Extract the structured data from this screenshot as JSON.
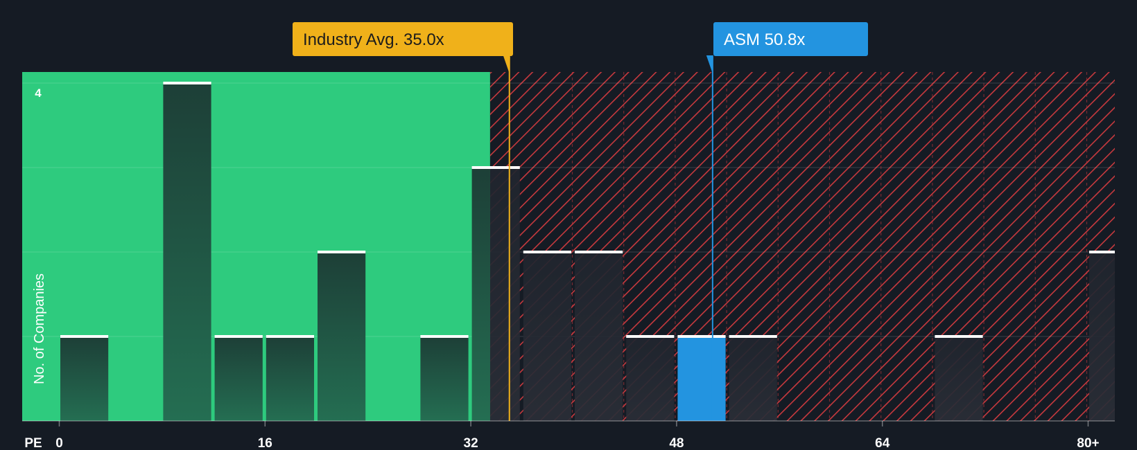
{
  "chart_data": {
    "type": "bar",
    "xlabel": "PE",
    "ylabel": "No. of Companies",
    "bin_width": 4,
    "xlim": [
      0,
      82
    ],
    "ylim": [
      0,
      4.14
    ],
    "x_ticks": [
      0,
      16,
      32,
      48,
      64,
      80
    ],
    "x_tick_labels": [
      "0",
      "16",
      "32",
      "48",
      "64",
      "80+"
    ],
    "y_ticks": [
      1,
      2,
      3,
      4
    ],
    "y_tick_labels": [
      "",
      "",
      "",
      "4"
    ],
    "bins": [
      0,
      8,
      12,
      16,
      20,
      28,
      32,
      36,
      40,
      44,
      48,
      52,
      68,
      80
    ],
    "values": [
      1,
      4,
      1,
      1,
      2,
      1,
      3,
      2,
      2,
      1,
      1,
      1,
      1,
      2
    ],
    "highlight_bin": 48,
    "fair_zone_end": 33.5,
    "markers": {
      "industry": {
        "label": "Industry Avg. 35.0x",
        "value": 35.0,
        "color": "#f0b11a"
      },
      "company": {
        "label": "ASM 50.8x",
        "value": 50.8,
        "color": "#2394e0"
      }
    },
    "colors": {
      "background": "#151b24",
      "fair_zone": "#2ecb7e",
      "overvalued_hatch": "#c8393e",
      "bar_fair": "#1e4a3c",
      "bar_over": "#262a33",
      "bar_highlight": "#2394e0",
      "bar_cap": "#ffffff"
    }
  }
}
